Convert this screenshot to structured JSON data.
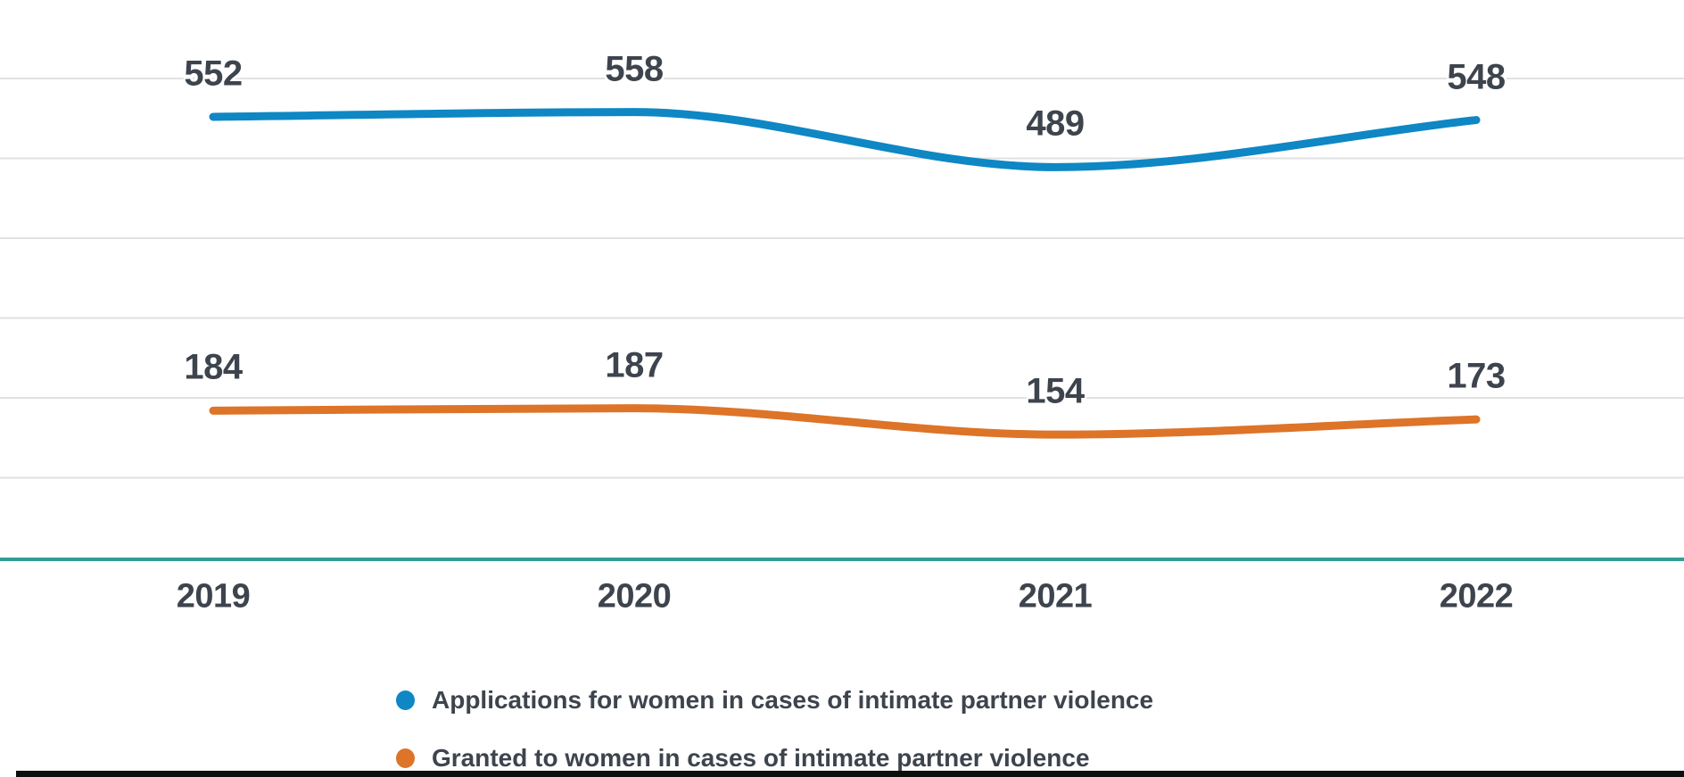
{
  "chart_data": {
    "type": "line",
    "title": "",
    "xlabel": "",
    "ylabel": "",
    "x": [
      "2019",
      "2020",
      "2021",
      "2022"
    ],
    "series": [
      {
        "name": "Applications for women in cases of intimate partner violence",
        "color": "#0e87c4",
        "values": [
          552,
          558,
          489,
          548
        ]
      },
      {
        "name": "Granted to women in cases of intimate partner violence",
        "color": "#dd7428",
        "values": [
          184,
          187,
          154,
          173
        ]
      }
    ],
    "ylim": [
      0,
      695
    ],
    "gridline_values": [
      100,
      200,
      300,
      400,
      500,
      600
    ],
    "grid": true,
    "data_labels": true,
    "legend_position": "bottom",
    "curve": "monotone"
  },
  "colors": {
    "grid": "#e1e1e1",
    "baseline": "#2f9e96",
    "label_text": "#3d444d",
    "background": "#ffffff",
    "bottom_bar": "#0d0d0d"
  }
}
